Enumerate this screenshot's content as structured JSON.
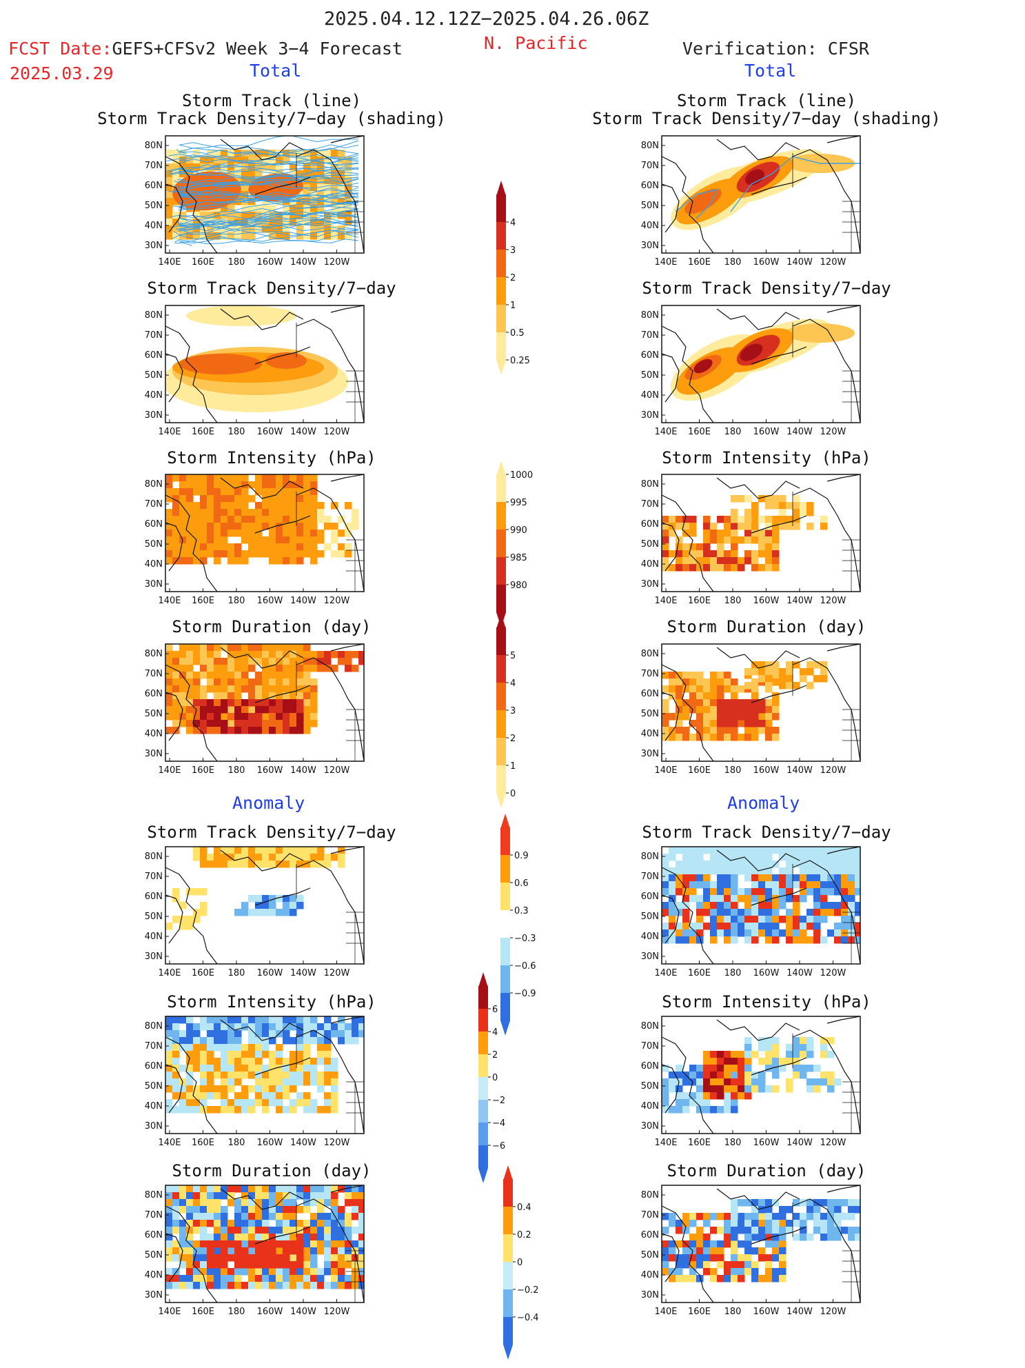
{
  "header": {
    "date_range": "2025.04.12.12Z−2025.04.26.06Z",
    "fcst_label": "FCST Date:",
    "forecast_name": "GEFS+CFSv2 Week 3−4 Forecast",
    "fcst_date": "2025.03.29",
    "region": "N. Pacific",
    "verification": "Verification: CFSR",
    "left_section_total": "Total",
    "right_section_total": "Total",
    "left_section_anomaly": "Anomaly",
    "right_section_anomaly": "Anomaly"
  },
  "axes": {
    "lat_labels": [
      "80N",
      "70N",
      "60N",
      "50N",
      "40N",
      "30N"
    ],
    "lon_labels": [
      "140E",
      "160E",
      "180",
      "160W",
      "140W",
      "120W"
    ]
  },
  "panel_titles": {
    "track_line": "Storm Track (line)",
    "track_shading": "Storm Track Density/7−day (shading)",
    "density": "Storm Track Density/7−day",
    "intensity": "Storm Intensity (hPa)",
    "duration": "Storm Duration (day)"
  },
  "colorbars": {
    "density": {
      "labels": [
        "4",
        "3",
        "2",
        "1",
        "0.5",
        "0.25"
      ],
      "colors": [
        "#a50f15",
        "#d7301f",
        "#f16913",
        "#fd9d0e",
        "#fdc552",
        "#feeb9b"
      ]
    },
    "intensity": {
      "labels": [
        "1000",
        "995",
        "990",
        "985",
        "980"
      ],
      "colors": [
        "#feeb9b",
        "#fd9d0e",
        "#f16913",
        "#d7301f",
        "#a50f15"
      ]
    },
    "duration": {
      "labels": [
        "5",
        "4",
        "3",
        "2",
        "1",
        "0"
      ],
      "colors": [
        "#a50f15",
        "#d7301f",
        "#f16913",
        "#fd9d0e",
        "#fdc552",
        "#feeb9b"
      ]
    },
    "anom_density": {
      "labels": [
        "0.9",
        "0.6",
        "0.3",
        "−0.3",
        "−0.6",
        "−0.9"
      ],
      "colors": [
        "#f03b20",
        "#fd9d0e",
        "#fee26a",
        "#ffffff",
        "#b6e6f5",
        "#6fb6ef",
        "#2f6fe0"
      ]
    },
    "anom_intensity": {
      "labels": [
        "6",
        "4",
        "2",
        "0",
        "−2",
        "−4",
        "−6"
      ],
      "colors": [
        "#a50f15",
        "#e8331a",
        "#fd9d0e",
        "#fee26a",
        "#c7ecf7",
        "#8fc6f2",
        "#5b9cec",
        "#2f6fe0"
      ]
    },
    "anom_duration": {
      "labels": [
        "0.4",
        "0.2",
        "0",
        "−0.2",
        "−0.4"
      ],
      "colors": [
        "#e8331a",
        "#fd9d0e",
        "#fee26a",
        "#c7ecf7",
        "#6fb6ef",
        "#2f6fe0"
      ]
    }
  }
}
